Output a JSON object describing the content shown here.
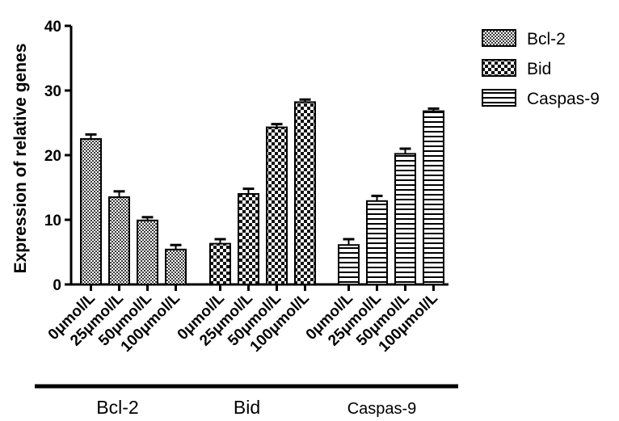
{
  "chart_data": {
    "type": "bar",
    "ylabel": "Expression of relative genes",
    "xlabel": "",
    "ylim": [
      0,
      40
    ],
    "yticks": [
      0,
      10,
      20,
      30,
      40
    ],
    "grid": false,
    "legend_position": "top-right",
    "groups": [
      {
        "name": "Bcl-2",
        "categories": [
          "0μmol/L",
          "25μmol/L",
          "50μmol/L",
          "100μmol/L"
        ],
        "values": [
          22.5,
          13.5,
          9.9,
          5.4
        ],
        "errors": [
          0.7,
          0.9,
          0.5,
          0.7
        ]
      },
      {
        "name": "Bid",
        "categories": [
          "0μmol/L",
          "25μmol/L",
          "50μmol/L",
          "100μmol/L"
        ],
        "values": [
          6.3,
          14.0,
          24.3,
          28.2
        ],
        "errors": [
          0.7,
          0.8,
          0.5,
          0.4
        ]
      },
      {
        "name": "Caspas-9",
        "categories": [
          "0μmol/L",
          "25μmol/L",
          "50μmol/L",
          "100μmol/L"
        ],
        "values": [
          6.1,
          12.9,
          20.2,
          26.8
        ],
        "errors": [
          0.9,
          0.8,
          0.8,
          0.4
        ]
      }
    ],
    "legend": [
      "Bcl-2",
      "Bid",
      "Caspas-9"
    ]
  }
}
